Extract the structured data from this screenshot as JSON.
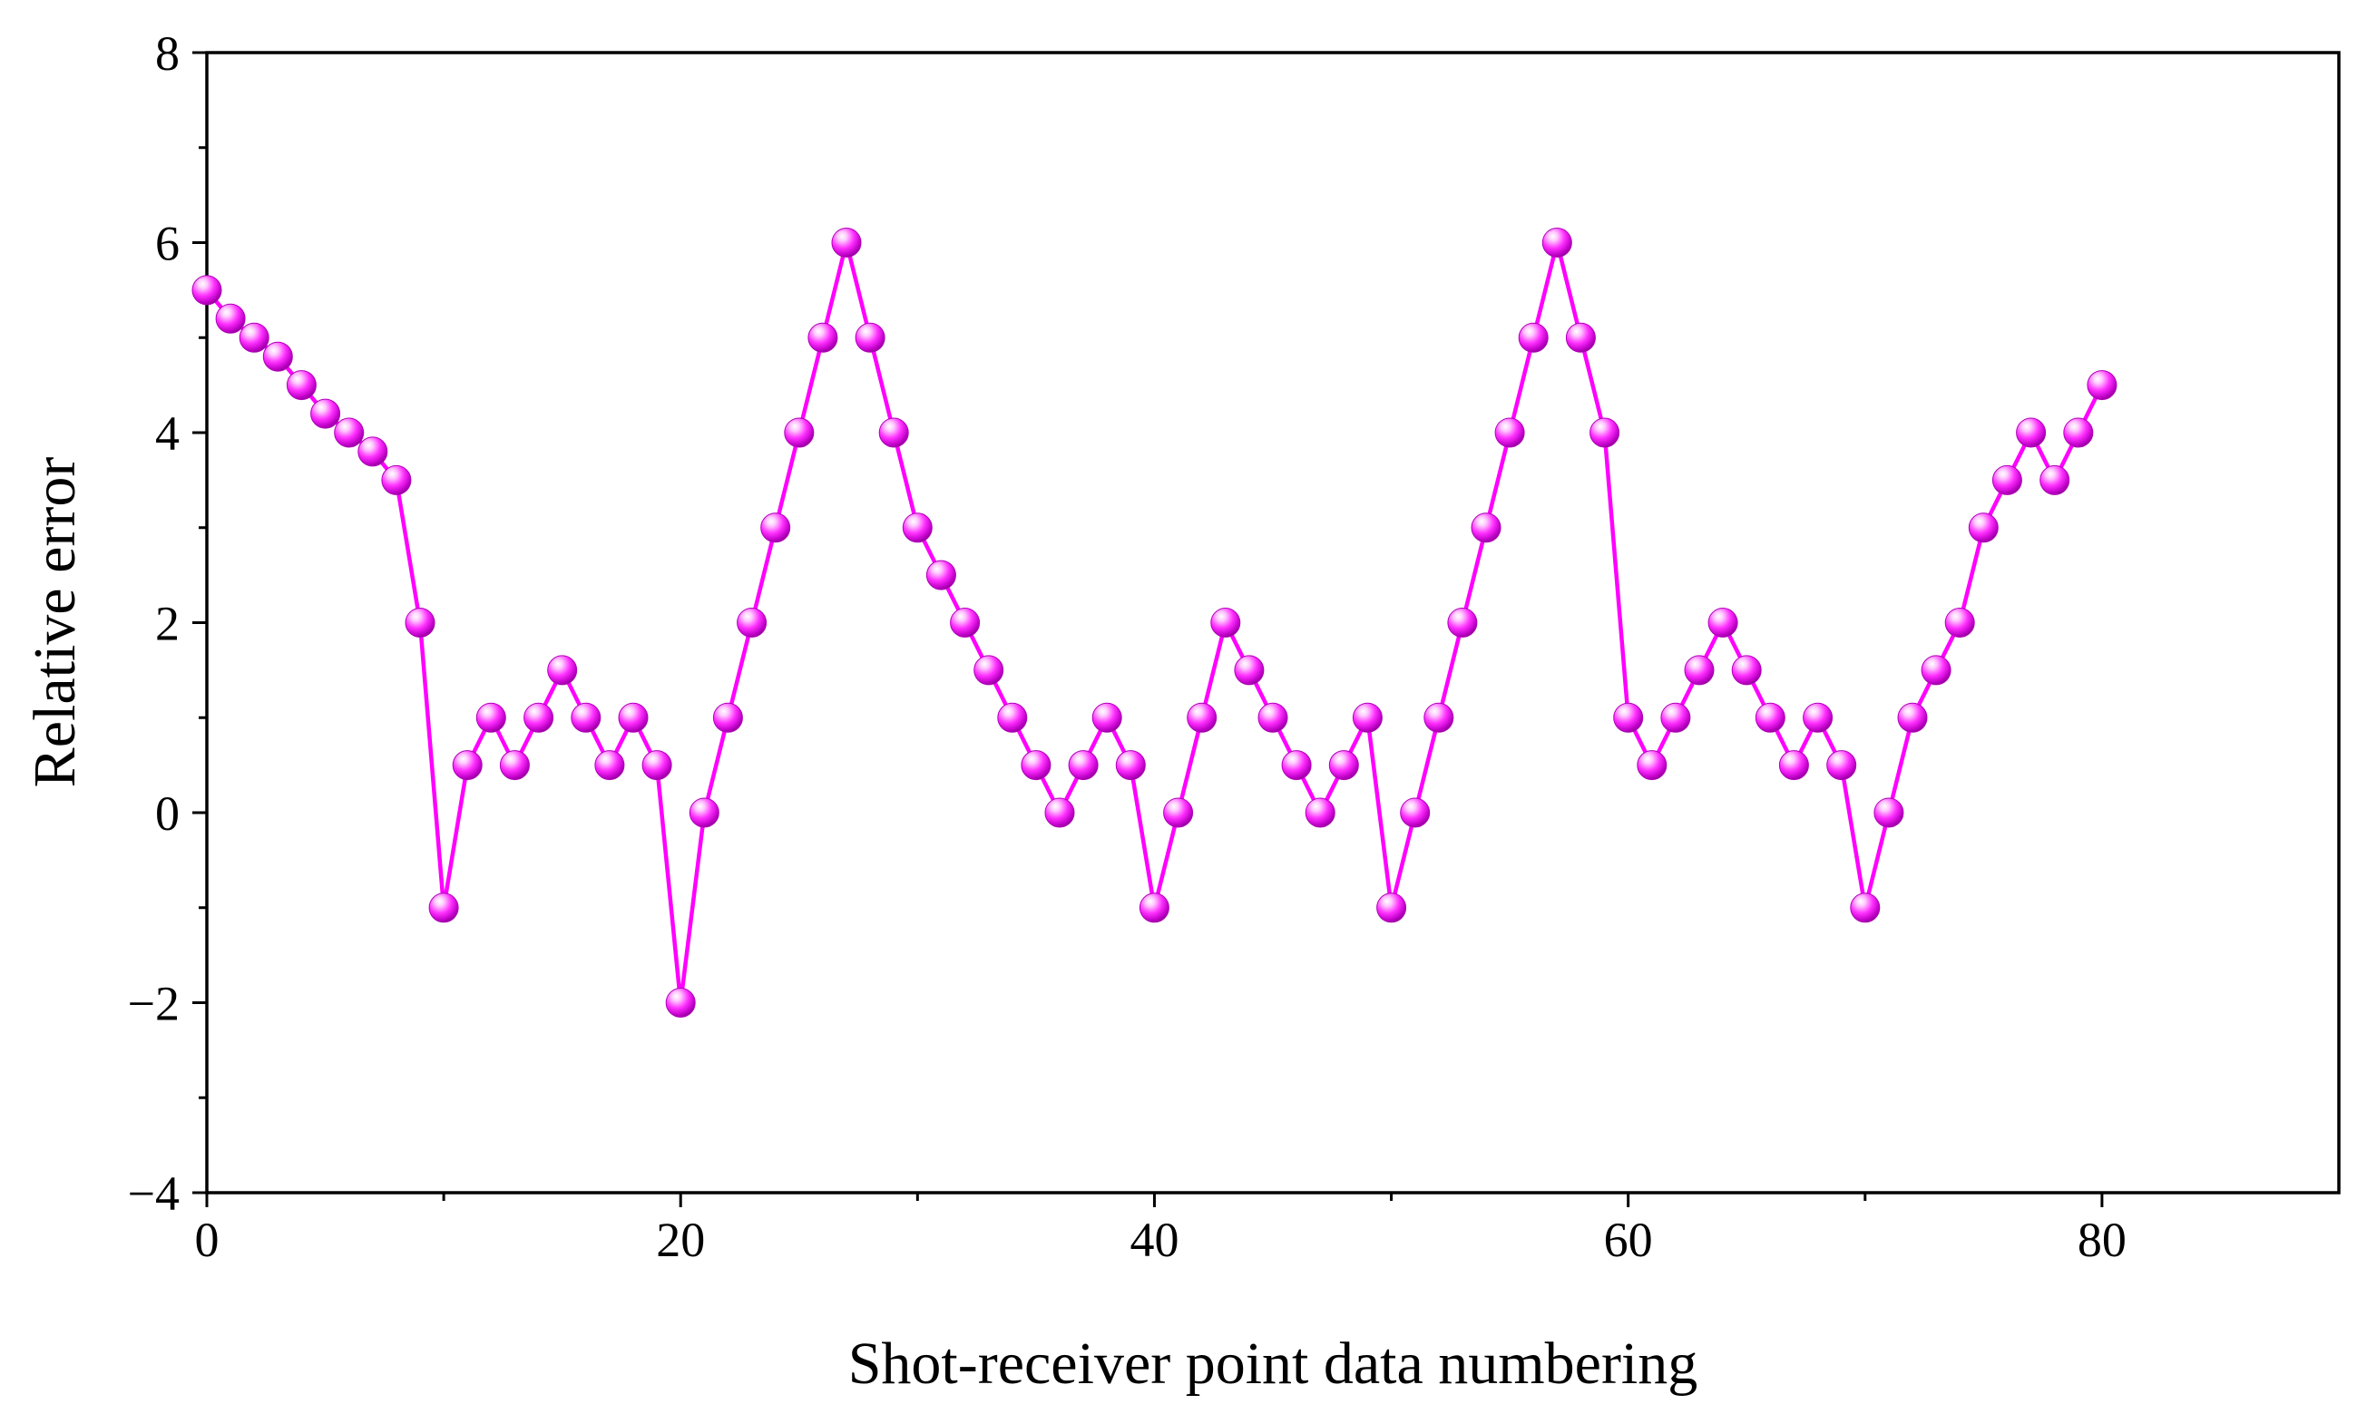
{
  "chart_data": {
    "type": "line",
    "title": "",
    "xlabel": "Shot-receiver point data numbering",
    "ylabel": "Relative error",
    "xlim": [
      0,
      90
    ],
    "ylim": [
      -4,
      8
    ],
    "x_ticks": [
      "0",
      "20",
      "40",
      "60",
      "80"
    ],
    "y_ticks": [
      "−4",
      "−2",
      "0",
      "2",
      "4",
      "6",
      "8"
    ],
    "grid": false,
    "legend": "none",
    "marker": "sphere",
    "series": [
      {
        "color": "#ff00ff",
        "x": [
          0,
          1,
          2,
          3,
          4,
          5,
          6,
          7,
          8,
          9,
          10,
          11,
          12,
          13,
          14,
          15,
          16,
          17,
          18,
          19,
          20,
          21,
          22,
          23,
          24,
          25,
          26,
          27,
          28,
          29,
          30,
          31,
          32,
          33,
          34,
          35,
          36,
          37,
          38,
          39,
          40,
          41,
          42,
          43,
          44,
          45,
          46,
          47,
          48,
          49,
          50,
          51,
          52,
          53,
          54,
          55,
          56,
          57,
          58,
          59,
          60,
          61,
          62,
          63,
          64,
          65,
          66,
          67,
          68,
          69,
          70,
          71,
          72,
          73,
          74,
          75,
          76,
          77,
          78,
          79,
          80
        ],
        "y": [
          5.5,
          5.2,
          5.0,
          4.8,
          4.5,
          4.2,
          4.0,
          3.8,
          3.5,
          2.0,
          -1.0,
          0.5,
          1.0,
          0.5,
          1.0,
          1.5,
          1.0,
          0.5,
          1.0,
          0.5,
          -2.0,
          0.0,
          1.0,
          2.0,
          3.0,
          4.0,
          5.0,
          6.0,
          5.0,
          4.0,
          3.0,
          2.5,
          2.0,
          1.5,
          1.0,
          0.5,
          0.0,
          0.5,
          1.0,
          0.5,
          -1.0,
          0.0,
          1.0,
          2.0,
          1.5,
          1.0,
          0.5,
          0.0,
          0.5,
          1.0,
          -1.0,
          0.0,
          1.0,
          2.0,
          3.0,
          4.0,
          5.0,
          6.0,
          5.0,
          4.0,
          1.0,
          0.5,
          1.0,
          1.5,
          2.0,
          1.5,
          1.0,
          0.5,
          1.0,
          0.5,
          -1.0,
          0.0,
          1.0,
          1.5,
          2.0,
          3.0,
          3.5,
          4.0,
          3.5,
          4.0,
          4.5
        ]
      }
    ]
  }
}
